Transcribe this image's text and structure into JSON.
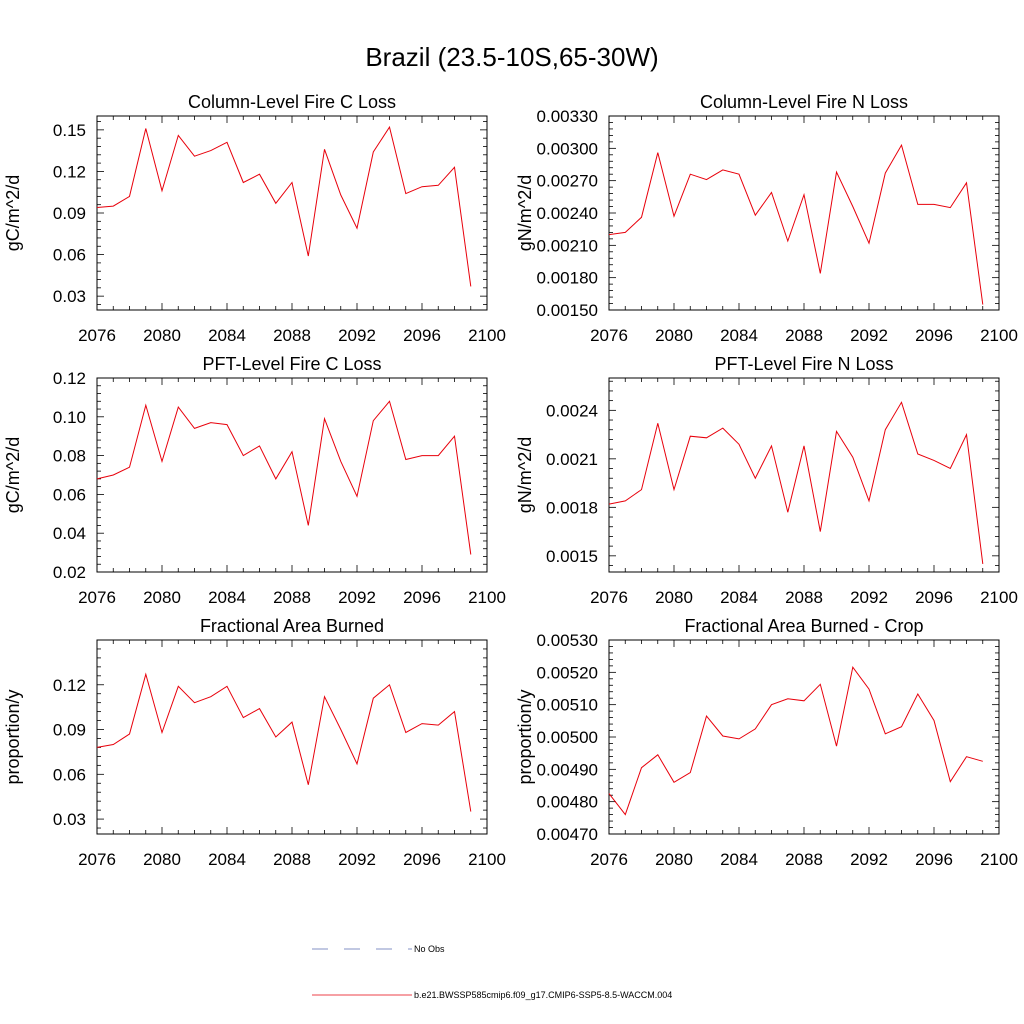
{
  "figure": {
    "title": "Brazil (23.5-10S,65-30W)"
  },
  "legend": {
    "entries": [
      {
        "label": "No Obs",
        "color": "#5b6fb3",
        "style": "dashed"
      },
      {
        "label": "b.e21.BWSSP585cmip6.f09_g17.CMIP6-SSP5-8.5-WACCM.004",
        "color": "#e8000b",
        "style": "solid"
      }
    ]
  },
  "chart_data": [
    {
      "type": "line",
      "title": "Column-Level Fire C Loss",
      "ylabel": "gC/m^2/d",
      "xlim": [
        2076,
        2100
      ],
      "ylim": [
        0.02,
        0.16
      ],
      "x_ticks": [
        "2076",
        "2080",
        "2084",
        "2088",
        "2092",
        "2096",
        "2100"
      ],
      "y_ticks": [
        "0.03",
        "0.06",
        "0.09",
        "0.12",
        "0.15"
      ],
      "series": [
        {
          "color": "#e8000b",
          "x": [
            2076,
            2077,
            2078,
            2079,
            2080,
            2081,
            2082,
            2083,
            2084,
            2085,
            2086,
            2087,
            2088,
            2089,
            2090,
            2091,
            2092,
            2093,
            2094,
            2095,
            2096,
            2097,
            2098,
            2099
          ],
          "values": [
            0.094,
            0.095,
            0.102,
            0.151,
            0.106,
            0.146,
            0.131,
            0.135,
            0.141,
            0.112,
            0.118,
            0.097,
            0.112,
            0.059,
            0.136,
            0.103,
            0.079,
            0.134,
            0.152,
            0.104,
            0.109,
            0.11,
            0.123,
            0.037
          ]
        }
      ]
    },
    {
      "type": "line",
      "title": "Column-Level Fire N Loss",
      "ylabel": "gN/m^2/d",
      "xlim": [
        2076,
        2100
      ],
      "ylim": [
        0.0015,
        0.0033
      ],
      "x_ticks": [
        "2076",
        "2080",
        "2084",
        "2088",
        "2092",
        "2096",
        "2100"
      ],
      "y_ticks": [
        "0.00150",
        "0.00180",
        "0.00210",
        "0.00240",
        "0.00270",
        "0.00300",
        "0.00330"
      ],
      "series": [
        {
          "color": "#e8000b",
          "x": [
            2076,
            2077,
            2078,
            2079,
            2080,
            2081,
            2082,
            2083,
            2084,
            2085,
            2086,
            2087,
            2088,
            2089,
            2090,
            2091,
            2092,
            2093,
            2094,
            2095,
            2096,
            2097,
            2098,
            2099
          ],
          "values": [
            0.0022,
            0.00222,
            0.00236,
            0.00296,
            0.00237,
            0.00276,
            0.00271,
            0.0028,
            0.00276,
            0.00238,
            0.00259,
            0.00214,
            0.00257,
            0.00184,
            0.00278,
            0.00246,
            0.00212,
            0.00277,
            0.00303,
            0.00248,
            0.00248,
            0.00245,
            0.00268,
            0.00155
          ]
        }
      ]
    },
    {
      "type": "line",
      "title": "PFT-Level Fire C Loss",
      "ylabel": "gC/m^2/d",
      "xlim": [
        2076,
        2100
      ],
      "ylim": [
        0.02,
        0.12
      ],
      "x_ticks": [
        "2076",
        "2080",
        "2084",
        "2088",
        "2092",
        "2096",
        "2100"
      ],
      "y_ticks": [
        "0.02",
        "0.04",
        "0.06",
        "0.08",
        "0.10",
        "0.12"
      ],
      "series": [
        {
          "color": "#e8000b",
          "x": [
            2076,
            2077,
            2078,
            2079,
            2080,
            2081,
            2082,
            2083,
            2084,
            2085,
            2086,
            2087,
            2088,
            2089,
            2090,
            2091,
            2092,
            2093,
            2094,
            2095,
            2096,
            2097,
            2098,
            2099
          ],
          "values": [
            0.068,
            0.07,
            0.074,
            0.106,
            0.077,
            0.105,
            0.094,
            0.097,
            0.096,
            0.08,
            0.085,
            0.068,
            0.082,
            0.044,
            0.099,
            0.077,
            0.059,
            0.098,
            0.108,
            0.078,
            0.08,
            0.08,
            0.09,
            0.029
          ]
        }
      ]
    },
    {
      "type": "line",
      "title": "PFT-Level Fire N Loss",
      "ylabel": "gN/m^2/d",
      "xlim": [
        2076,
        2100
      ],
      "ylim": [
        0.0014,
        0.0026
      ],
      "x_ticks": [
        "2076",
        "2080",
        "2084",
        "2088",
        "2092",
        "2096",
        "2100"
      ],
      "y_ticks": [
        "0.0015",
        "0.0018",
        "0.0021",
        "0.0024"
      ],
      "series": [
        {
          "color": "#e8000b",
          "x": [
            2076,
            2077,
            2078,
            2079,
            2080,
            2081,
            2082,
            2083,
            2084,
            2085,
            2086,
            2087,
            2088,
            2089,
            2090,
            2091,
            2092,
            2093,
            2094,
            2095,
            2096,
            2097,
            2098,
            2099
          ],
          "values": [
            0.00182,
            0.00184,
            0.00191,
            0.00232,
            0.00191,
            0.00224,
            0.00223,
            0.00229,
            0.00219,
            0.00198,
            0.00218,
            0.00177,
            0.00218,
            0.00165,
            0.00227,
            0.00211,
            0.00184,
            0.00228,
            0.00245,
            0.00213,
            0.00209,
            0.00204,
            0.00225,
            0.00145
          ]
        }
      ]
    },
    {
      "type": "line",
      "title": "Fractional Area Burned",
      "ylabel": "proportion/y",
      "xlim": [
        2076,
        2100
      ],
      "ylim": [
        0.02,
        0.15
      ],
      "x_ticks": [
        "2076",
        "2080",
        "2084",
        "2088",
        "2092",
        "2096",
        "2100"
      ],
      "y_ticks": [
        "0.03",
        "0.06",
        "0.09",
        "0.12"
      ],
      "series": [
        {
          "color": "#e8000b",
          "x": [
            2076,
            2077,
            2078,
            2079,
            2080,
            2081,
            2082,
            2083,
            2084,
            2085,
            2086,
            2087,
            2088,
            2089,
            2090,
            2091,
            2092,
            2093,
            2094,
            2095,
            2096,
            2097,
            2098,
            2099
          ],
          "values": [
            0.078,
            0.08,
            0.087,
            0.127,
            0.088,
            0.119,
            0.108,
            0.112,
            0.119,
            0.098,
            0.104,
            0.085,
            0.095,
            0.053,
            0.112,
            0.09,
            0.067,
            0.111,
            0.12,
            0.088,
            0.094,
            0.093,
            0.102,
            0.035
          ]
        }
      ]
    },
    {
      "type": "line",
      "title": "Fractional Area Burned - Crop",
      "ylabel": "proportion/y",
      "xlim": [
        2076,
        2100
      ],
      "ylim": [
        0.0047,
        0.0053
      ],
      "x_ticks": [
        "2076",
        "2080",
        "2084",
        "2088",
        "2092",
        "2096",
        "2100"
      ],
      "y_ticks": [
        "0.00470",
        "0.00480",
        "0.00490",
        "0.00500",
        "0.00510",
        "0.00520",
        "0.00530"
      ],
      "series": [
        {
          "color": "#e8000b",
          "x": [
            2076,
            2077,
            2078,
            2079,
            2080,
            2081,
            2082,
            2083,
            2084,
            2085,
            2086,
            2087,
            2088,
            2089,
            2090,
            2091,
            2092,
            2093,
            2094,
            2095,
            2096,
            2097,
            2098,
            2099
          ],
          "values": [
            0.004825,
            0.00476,
            0.004905,
            0.004945,
            0.00486,
            0.00489,
            0.005065,
            0.005003,
            0.004994,
            0.005025,
            0.0051,
            0.005118,
            0.005112,
            0.005163,
            0.004972,
            0.005216,
            0.005148,
            0.00501,
            0.005032,
            0.005133,
            0.005051,
            0.004862,
            0.004939,
            0.004925
          ]
        }
      ]
    }
  ]
}
